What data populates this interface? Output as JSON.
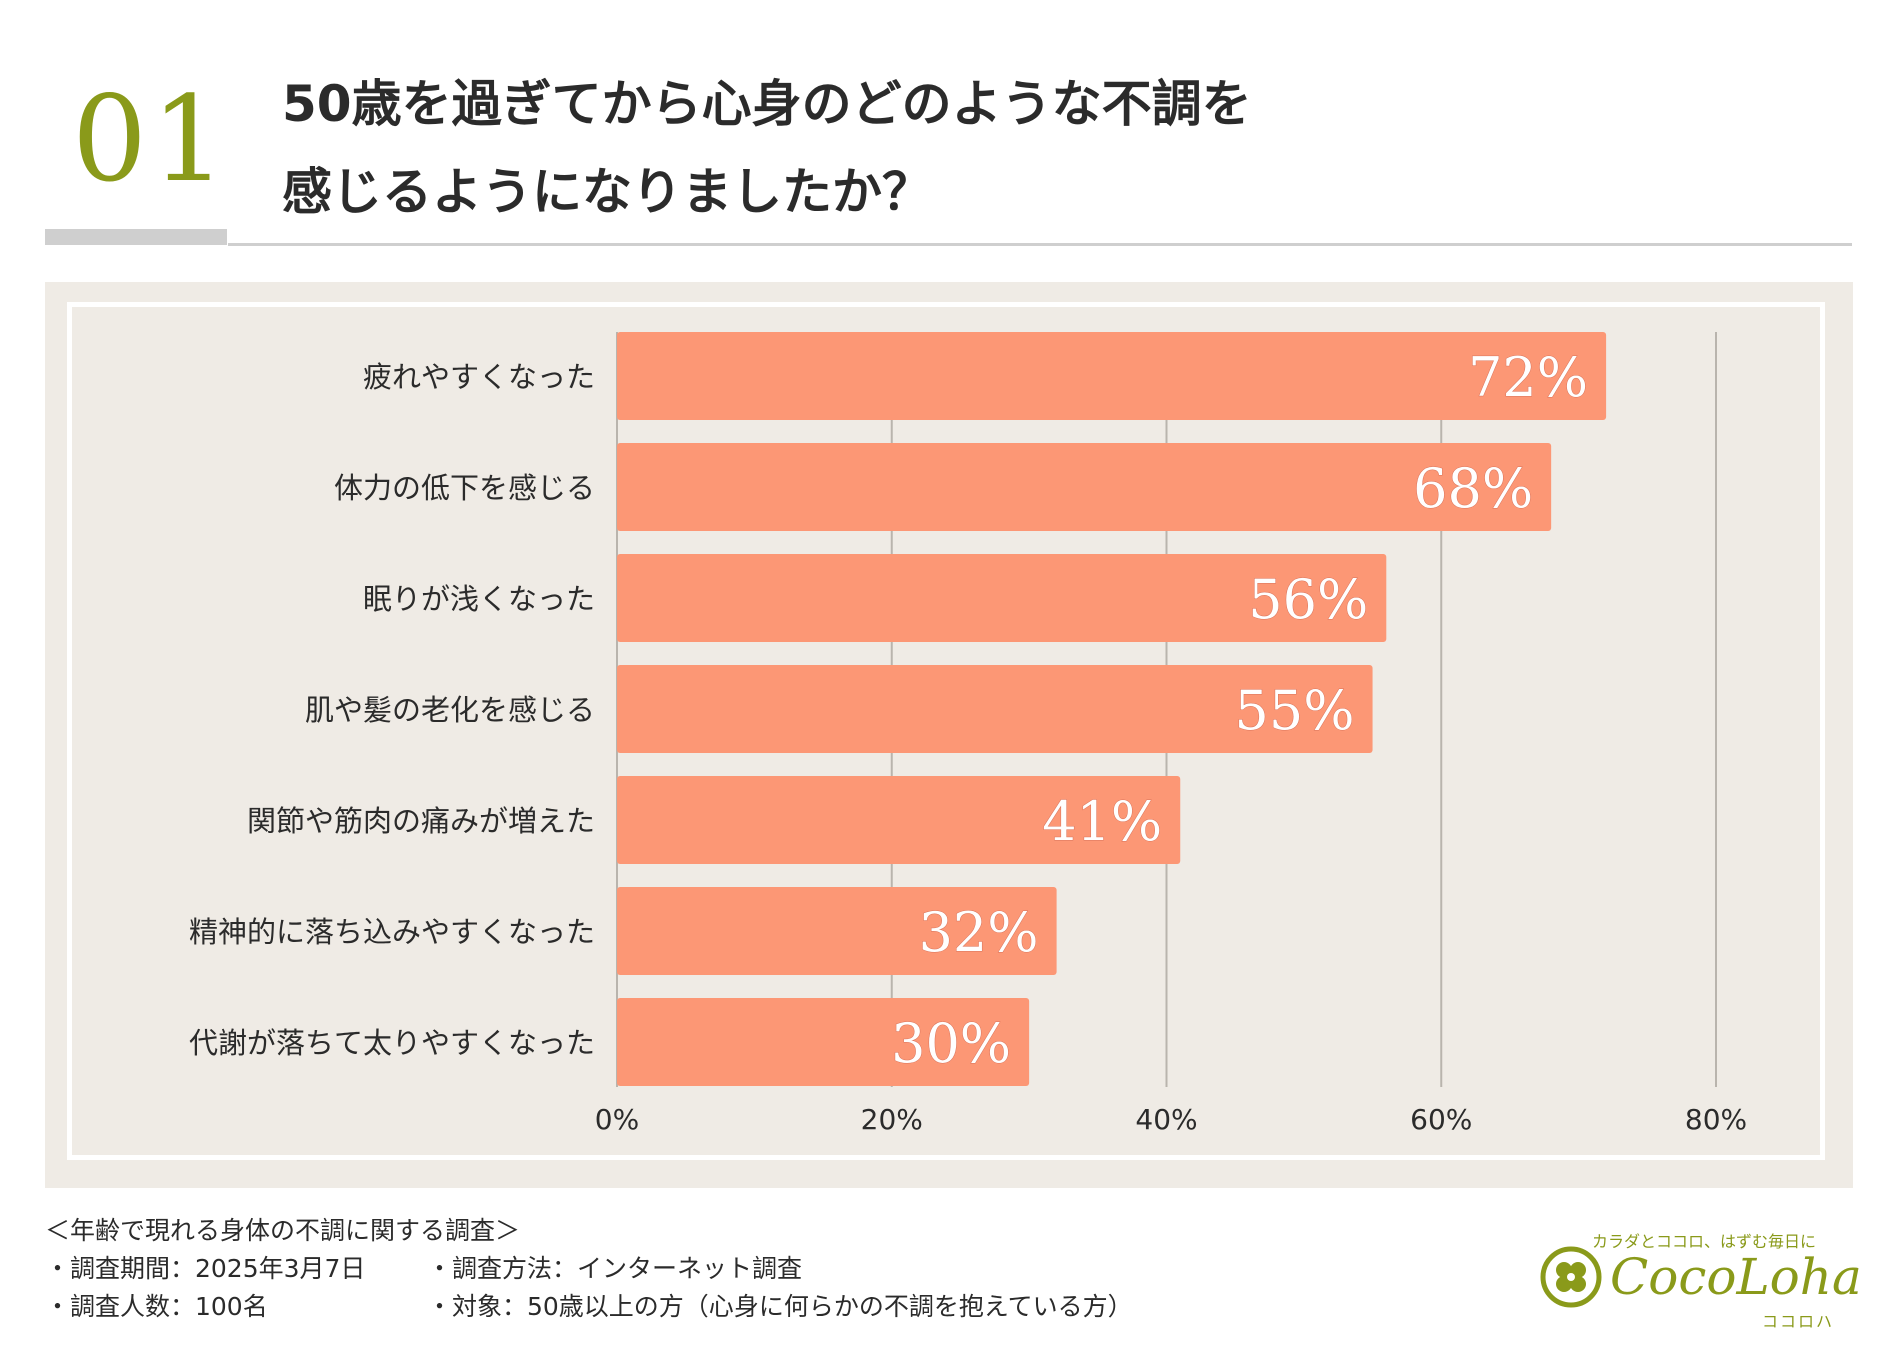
{
  "question": {
    "number": "01",
    "title_line1": "50歳を過ぎてから心身のどのような不調を",
    "title_line2": "感じるようになりましたか？"
  },
  "chart_data": {
    "type": "bar",
    "orientation": "horizontal",
    "categories": [
      "疲れやすくなった",
      "体力の低下を感じる",
      "眠りが浅くなった",
      "肌や髪の老化を感じる",
      "関節や筋肉の痛みが増えた",
      "精神的に落ち込みやすくなった",
      "代謝が落ちて太りやすくなった"
    ],
    "values": [
      72,
      68,
      56,
      55,
      41,
      32,
      30
    ],
    "value_labels": [
      "72%",
      "68%",
      "56%",
      "55%",
      "41%",
      "32%",
      "30%"
    ],
    "xlim": [
      0,
      80
    ],
    "ticks": [
      0,
      20,
      40,
      60,
      80
    ],
    "tick_labels": [
      "0%",
      "20%",
      "40%",
      "60%",
      "80%"
    ],
    "grid": true,
    "bar_color": "#fc9775"
  },
  "footer": {
    "survey_title": "＜年齢で現れる身体の不調に関する調査＞",
    "period": "・調査期間：2025年3月7日",
    "method": "・調査方法：インターネット調査",
    "respondents": "・調査人数：100名",
    "target": "・対象：50歳以上の方（心身に何らかの不調を抱えている方）"
  },
  "logo": {
    "tagline": "カラダとココロ、はずむ毎日に",
    "brand": "CocoLoha",
    "brand_kana": "ココロハ",
    "icon": "clover-icon"
  },
  "colors": {
    "accent": "#8a9a1a",
    "panel": "#efebe5",
    "bar": "#fc9775"
  }
}
